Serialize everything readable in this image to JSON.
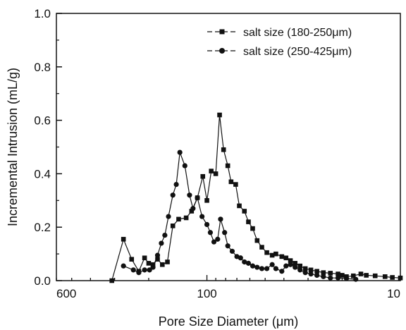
{
  "chart_data": {
    "type": "line",
    "title": "",
    "xlabel": "Pore Size Diameter (μm)",
    "ylabel": "Incremental Intrusion (mL/g)",
    "x_scale": "log",
    "x_reversed": true,
    "xlim": [
      600,
      10
    ],
    "ylim": [
      0,
      1.0
    ],
    "x_tick_labels": [
      "600",
      "100",
      "10"
    ],
    "y_tick_labels": [
      "0.0",
      "0.2",
      "0.4",
      "0.6",
      "0.8",
      "1.0"
    ],
    "grid": false,
    "legend_position": "top-right",
    "series": [
      {
        "name": "salt size (180-250μm)",
        "marker": "square",
        "color": "#111111",
        "x": [
          310,
          270,
          245,
          225,
          210,
          200,
          190,
          180,
          170,
          160,
          150,
          140,
          128,
          120,
          112,
          105,
          100,
          95,
          90,
          86,
          82,
          78,
          75,
          71,
          68,
          64,
          61,
          58,
          55,
          52,
          49,
          46,
          44,
          41,
          39,
          37,
          35,
          33,
          31,
          29,
          27,
          25,
          23,
          21,
          20,
          19,
          17.5,
          16,
          15,
          13.5,
          12,
          11,
          10
        ],
        "y": [
          0.0,
          0.155,
          0.08,
          0.035,
          0.085,
          0.065,
          0.06,
          0.08,
          0.06,
          0.07,
          0.205,
          0.23,
          0.235,
          0.26,
          0.31,
          0.39,
          0.3,
          0.41,
          0.4,
          0.62,
          0.49,
          0.43,
          0.37,
          0.36,
          0.28,
          0.26,
          0.22,
          0.195,
          0.15,
          0.125,
          0.105,
          0.095,
          0.1,
          0.09,
          0.085,
          0.075,
          0.065,
          0.055,
          0.045,
          0.04,
          0.035,
          0.03,
          0.028,
          0.025,
          0.02,
          0.015,
          0.018,
          0.025,
          0.02,
          0.018,
          0.015,
          0.012,
          0.01
        ]
      },
      {
        "name": "salt size (250-425μm)",
        "marker": "circle",
        "color": "#111111",
        "x": [
          270,
          240,
          225,
          210,
          198,
          190,
          180,
          172,
          165,
          158,
          150,
          144,
          138,
          130,
          123,
          118,
          112,
          106,
          100,
          96,
          92,
          88,
          85,
          81,
          78,
          74,
          70,
          67,
          64,
          61,
          58,
          55,
          52,
          49,
          46,
          44,
          41,
          39,
          37,
          35,
          33,
          31,
          29,
          27,
          25,
          23,
          21,
          19,
          17
        ],
        "y": [
          0.055,
          0.04,
          0.03,
          0.04,
          0.04,
          0.05,
          0.095,
          0.14,
          0.17,
          0.24,
          0.32,
          0.36,
          0.48,
          0.43,
          0.32,
          0.27,
          0.31,
          0.24,
          0.21,
          0.18,
          0.145,
          0.155,
          0.23,
          0.18,
          0.13,
          0.11,
          0.09,
          0.085,
          0.07,
          0.065,
          0.055,
          0.05,
          0.045,
          0.045,
          0.06,
          0.045,
          0.035,
          0.055,
          0.06,
          0.05,
          0.04,
          0.03,
          0.025,
          0.02,
          0.015,
          0.01,
          0.01,
          0.008,
          0.005
        ]
      }
    ]
  }
}
